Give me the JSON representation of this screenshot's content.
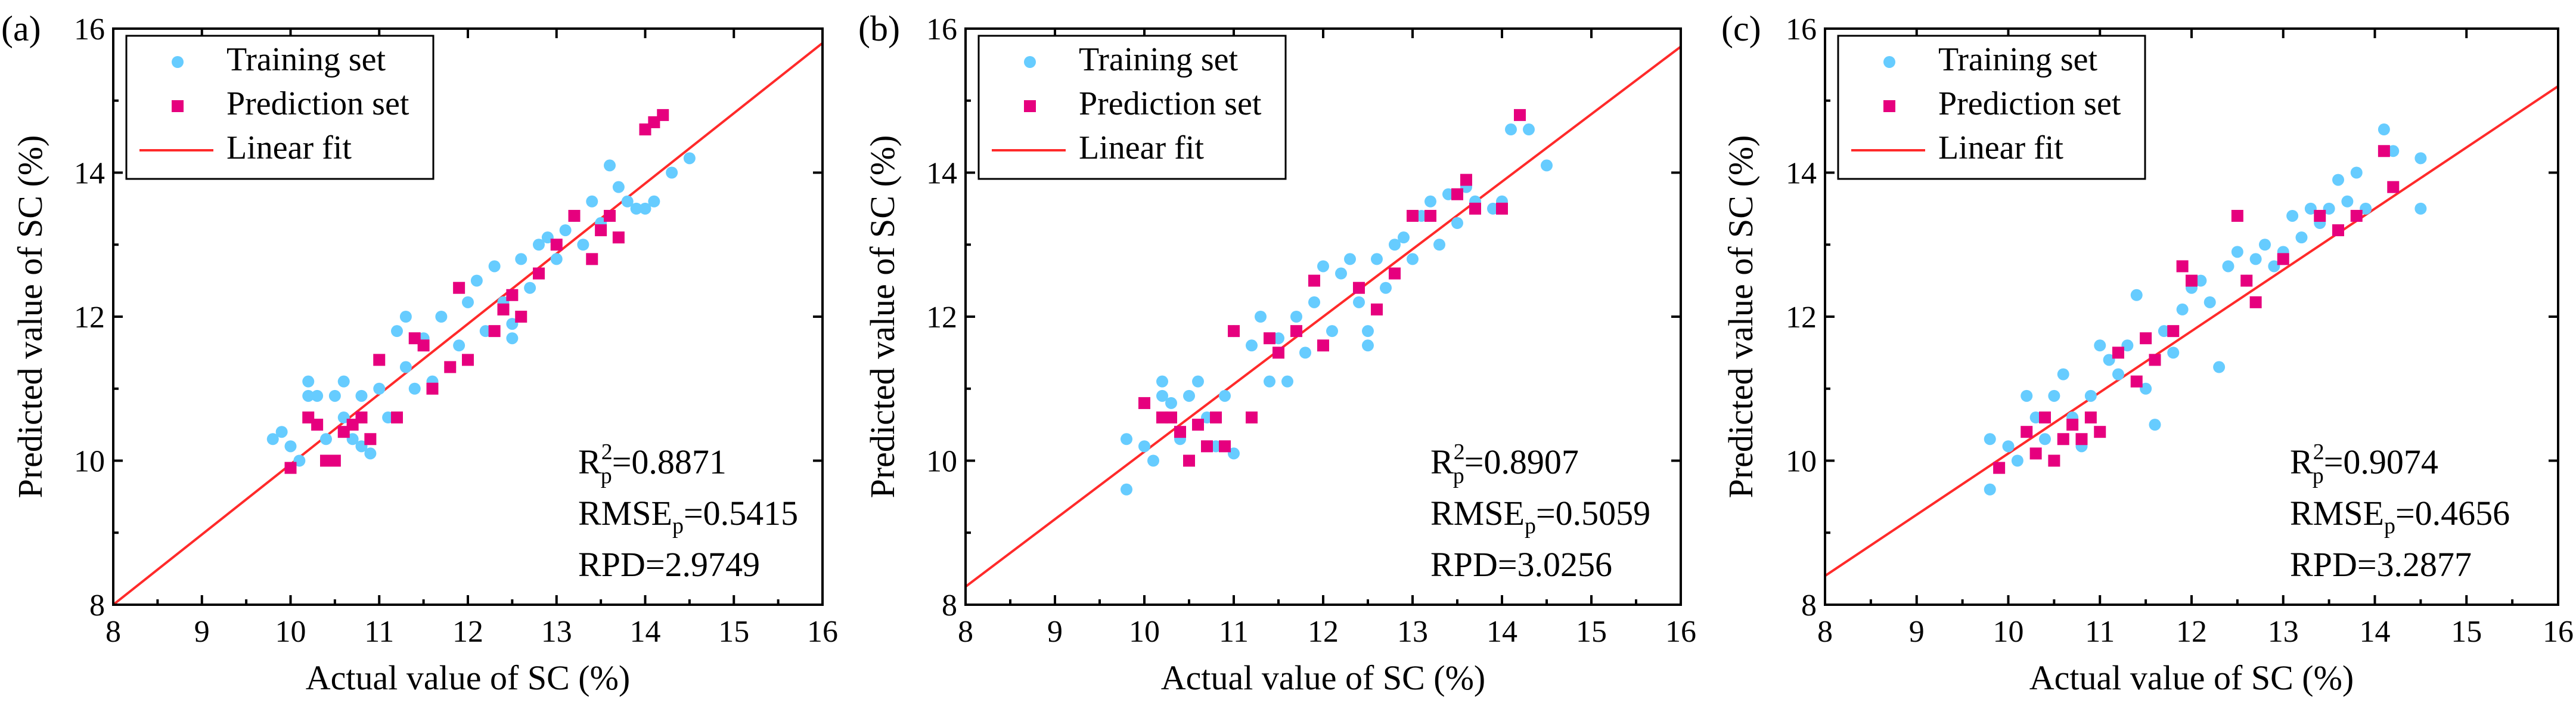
{
  "chart_data": [
    {
      "type": "scatter",
      "panel_label": "(a)",
      "xlabel": "Actual value of SC (%)",
      "ylabel": "Predicted value of  SC (%)",
      "xlim": [
        8,
        16
      ],
      "ylim": [
        8,
        16
      ],
      "xticks": [
        8,
        9,
        10,
        11,
        12,
        13,
        14,
        15,
        16
      ],
      "yticks": [
        8,
        10,
        12,
        14,
        16
      ],
      "legend": {
        "location": "top-left",
        "entries": [
          "Training set",
          "Prediction set",
          "Linear fit"
        ]
      },
      "stats": {
        "r2_label": "R",
        "r2_sup": "2",
        "r2_sub": "p",
        "r2_value": "=0.8871",
        "rmse_label": "RMSE",
        "rmse_sub": "p",
        "rmse_value": "=0.5415",
        "rpd": "RPD=2.9749"
      },
      "fit_line": {
        "x": [
          8,
          16
        ],
        "y": [
          8.0,
          15.8
        ]
      },
      "series": [
        {
          "name": "Training set",
          "marker": "circle",
          "color": "#66ccff",
          "points": [
            [
              9.8,
              10.3
            ],
            [
              9.9,
              10.4
            ],
            [
              10.0,
              10.2
            ],
            [
              10.1,
              10.0
            ],
            [
              10.2,
              10.9
            ],
            [
              10.2,
              11.1
            ],
            [
              10.3,
              10.9
            ],
            [
              10.4,
              10.3
            ],
            [
              10.5,
              10.9
            ],
            [
              10.6,
              11.1
            ],
            [
              10.6,
              10.6
            ],
            [
              10.7,
              10.3
            ],
            [
              10.8,
              10.2
            ],
            [
              10.8,
              10.9
            ],
            [
              10.9,
              10.1
            ],
            [
              11.0,
              11.0
            ],
            [
              11.1,
              10.6
            ],
            [
              11.2,
              11.8
            ],
            [
              11.3,
              11.3
            ],
            [
              11.3,
              12.0
            ],
            [
              11.4,
              11.0
            ],
            [
              11.5,
              11.7
            ],
            [
              11.6,
              11.1
            ],
            [
              11.7,
              12.0
            ],
            [
              11.8,
              11.3
            ],
            [
              11.9,
              11.6
            ],
            [
              12.0,
              12.2
            ],
            [
              12.1,
              12.5
            ],
            [
              12.2,
              11.8
            ],
            [
              12.3,
              12.7
            ],
            [
              12.4,
              12.2
            ],
            [
              12.5,
              11.7
            ],
            [
              12.5,
              11.9
            ],
            [
              12.6,
              12.8
            ],
            [
              12.7,
              12.4
            ],
            [
              12.8,
              13.0
            ],
            [
              12.9,
              13.1
            ],
            [
              13.0,
              12.8
            ],
            [
              13.1,
              13.2
            ],
            [
              13.2,
              13.4
            ],
            [
              13.3,
              13.0
            ],
            [
              13.4,
              13.6
            ],
            [
              13.5,
              13.3
            ],
            [
              13.6,
              14.1
            ],
            [
              13.7,
              13.8
            ],
            [
              13.8,
              13.6
            ],
            [
              13.9,
              13.5
            ],
            [
              14.0,
              13.5
            ],
            [
              14.1,
              13.6
            ],
            [
              14.3,
              14.0
            ],
            [
              14.5,
              14.2
            ]
          ]
        },
        {
          "name": "Prediction set",
          "marker": "square",
          "color": "#e6007e",
          "points": [
            [
              10.0,
              9.9
            ],
            [
              10.2,
              10.6
            ],
            [
              10.3,
              10.5
            ],
            [
              10.4,
              10.0
            ],
            [
              10.5,
              10.0
            ],
            [
              10.6,
              10.4
            ],
            [
              10.7,
              10.5
            ],
            [
              10.8,
              10.6
            ],
            [
              10.9,
              10.3
            ],
            [
              11.0,
              11.4
            ],
            [
              11.2,
              10.6
            ],
            [
              11.4,
              11.7
            ],
            [
              11.5,
              11.6
            ],
            [
              11.6,
              11.0
            ],
            [
              11.8,
              11.3
            ],
            [
              11.9,
              12.4
            ],
            [
              12.0,
              11.4
            ],
            [
              12.3,
              11.8
            ],
            [
              12.4,
              12.1
            ],
            [
              12.5,
              12.3
            ],
            [
              12.6,
              12.0
            ],
            [
              12.8,
              12.6
            ],
            [
              13.0,
              13.0
            ],
            [
              13.2,
              13.4
            ],
            [
              13.4,
              12.8
            ],
            [
              13.5,
              13.2
            ],
            [
              13.6,
              13.4
            ],
            [
              13.7,
              13.1
            ],
            [
              14.0,
              14.6
            ],
            [
              14.1,
              14.7
            ],
            [
              14.2,
              14.8
            ]
          ]
        }
      ]
    },
    {
      "type": "scatter",
      "panel_label": "(b)",
      "xlabel": "Actual value of SC (%)",
      "ylabel": "Predicted value of SC (%)",
      "xlim": [
        8,
        16
      ],
      "ylim": [
        8,
        16
      ],
      "xticks": [
        8,
        9,
        10,
        11,
        12,
        13,
        14,
        15,
        16
      ],
      "yticks": [
        8,
        10,
        12,
        14,
        16
      ],
      "legend": {
        "location": "top-left",
        "entries": [
          "Training set",
          "Prediction set",
          "Linear fit"
        ]
      },
      "stats": {
        "r2_label": "R",
        "r2_sup": "2",
        "r2_sub": "p",
        "r2_value": "=0.8907",
        "rmse_label": "RMSE",
        "rmse_sub": "p",
        "rmse_value": "=0.5059",
        "rpd": "RPD=3.0256"
      },
      "fit_line": {
        "x": [
          8,
          16
        ],
        "y": [
          8.25,
          15.75
        ]
      },
      "series": [
        {
          "name": "Training set",
          "marker": "circle",
          "color": "#66ccff",
          "points": [
            [
              9.8,
              9.6
            ],
            [
              9.8,
              10.3
            ],
            [
              10.0,
              10.2
            ],
            [
              10.1,
              10.0
            ],
            [
              10.2,
              10.9
            ],
            [
              10.2,
              11.1
            ],
            [
              10.3,
              10.8
            ],
            [
              10.4,
              10.3
            ],
            [
              10.5,
              10.9
            ],
            [
              10.6,
              11.1
            ],
            [
              10.7,
              10.6
            ],
            [
              10.8,
              10.2
            ],
            [
              10.9,
              10.9
            ],
            [
              11.0,
              10.1
            ],
            [
              11.0,
              11.8
            ],
            [
              11.2,
              11.6
            ],
            [
              11.3,
              12.0
            ],
            [
              11.4,
              11.1
            ],
            [
              11.5,
              11.7
            ],
            [
              11.6,
              11.1
            ],
            [
              11.7,
              12.0
            ],
            [
              11.8,
              11.5
            ],
            [
              11.9,
              12.2
            ],
            [
              12.0,
              12.7
            ],
            [
              12.1,
              11.8
            ],
            [
              12.2,
              12.6
            ],
            [
              12.3,
              12.8
            ],
            [
              12.4,
              12.2
            ],
            [
              12.5,
              11.6
            ],
            [
              12.5,
              11.8
            ],
            [
              12.6,
              12.8
            ],
            [
              12.7,
              12.4
            ],
            [
              12.8,
              13.0
            ],
            [
              12.9,
              13.1
            ],
            [
              13.0,
              12.8
            ],
            [
              13.1,
              13.4
            ],
            [
              13.2,
              13.6
            ],
            [
              13.3,
              13.0
            ],
            [
              13.4,
              13.7
            ],
            [
              13.5,
              13.3
            ],
            [
              13.6,
              13.8
            ],
            [
              13.7,
              13.6
            ],
            [
              13.9,
              13.5
            ],
            [
              14.0,
              13.6
            ],
            [
              14.1,
              14.6
            ],
            [
              14.3,
              14.6
            ],
            [
              14.5,
              14.1
            ]
          ]
        },
        {
          "name": "Prediction set",
          "marker": "square",
          "color": "#e6007e",
          "points": [
            [
              10.0,
              10.8
            ],
            [
              10.2,
              10.6
            ],
            [
              10.3,
              10.6
            ],
            [
              10.4,
              10.4
            ],
            [
              10.5,
              10.0
            ],
            [
              10.6,
              10.5
            ],
            [
              10.7,
              10.2
            ],
            [
              10.8,
              10.6
            ],
            [
              10.9,
              10.2
            ],
            [
              11.0,
              11.8
            ],
            [
              11.2,
              10.6
            ],
            [
              11.4,
              11.7
            ],
            [
              11.5,
              11.5
            ],
            [
              11.7,
              11.8
            ],
            [
              11.9,
              12.5
            ],
            [
              12.0,
              11.6
            ],
            [
              12.4,
              12.4
            ],
            [
              12.6,
              12.1
            ],
            [
              12.8,
              12.6
            ],
            [
              13.0,
              13.4
            ],
            [
              13.2,
              13.4
            ],
            [
              13.5,
              13.7
            ],
            [
              13.6,
              13.9
            ],
            [
              13.7,
              13.5
            ],
            [
              14.0,
              13.5
            ],
            [
              14.2,
              14.8
            ]
          ]
        }
      ]
    },
    {
      "type": "scatter",
      "panel_label": "(c)",
      "xlabel": "Actual value of SC (%)",
      "ylabel": "Predicted value of SC (%)",
      "xlim": [
        8,
        16
      ],
      "ylim": [
        8,
        16
      ],
      "xticks": [
        8,
        9,
        10,
        11,
        12,
        13,
        14,
        15,
        16
      ],
      "yticks": [
        8,
        10,
        12,
        14,
        16
      ],
      "legend": {
        "location": "top-left",
        "entries": [
          "Training set",
          "Prediction set",
          "Linear fit"
        ]
      },
      "stats": {
        "r2_label": "R",
        "r2_sup": "2",
        "r2_sub": "p",
        "r2_value": "=0.9074",
        "rmse_label": "RMSE",
        "rmse_sub": "p",
        "rmse_value": "=0.4656",
        "rpd": "RPD=3.2877"
      },
      "fit_line": {
        "x": [
          8,
          16
        ],
        "y": [
          8.4,
          15.2
        ]
      },
      "series": [
        {
          "name": "Training set",
          "marker": "circle",
          "color": "#66ccff",
          "points": [
            [
              9.8,
              9.6
            ],
            [
              9.8,
              10.3
            ],
            [
              10.0,
              10.2
            ],
            [
              10.1,
              10.0
            ],
            [
              10.2,
              10.9
            ],
            [
              10.3,
              10.6
            ],
            [
              10.4,
              10.3
            ],
            [
              10.5,
              10.9
            ],
            [
              10.6,
              11.2
            ],
            [
              10.7,
              10.6
            ],
            [
              10.8,
              10.2
            ],
            [
              10.9,
              10.9
            ],
            [
              11.0,
              11.6
            ],
            [
              11.1,
              11.4
            ],
            [
              11.2,
              11.2
            ],
            [
              11.3,
              11.6
            ],
            [
              11.4,
              12.3
            ],
            [
              11.5,
              11.0
            ],
            [
              11.6,
              10.5
            ],
            [
              11.7,
              11.8
            ],
            [
              11.8,
              11.5
            ],
            [
              11.9,
              12.1
            ],
            [
              12.0,
              12.4
            ],
            [
              12.1,
              12.5
            ],
            [
              12.2,
              12.2
            ],
            [
              12.3,
              11.3
            ],
            [
              12.4,
              12.7
            ],
            [
              12.5,
              12.9
            ],
            [
              12.6,
              12.5
            ],
            [
              12.7,
              12.8
            ],
            [
              12.8,
              13.0
            ],
            [
              12.9,
              12.7
            ],
            [
              13.0,
              12.9
            ],
            [
              13.1,
              13.4
            ],
            [
              13.2,
              13.1
            ],
            [
              13.3,
              13.5
            ],
            [
              13.4,
              13.3
            ],
            [
              13.5,
              13.5
            ],
            [
              13.6,
              13.9
            ],
            [
              13.7,
              13.6
            ],
            [
              13.8,
              14.0
            ],
            [
              13.9,
              13.5
            ],
            [
              14.1,
              14.6
            ],
            [
              14.2,
              14.3
            ],
            [
              14.5,
              14.2
            ],
            [
              14.5,
              13.5
            ]
          ]
        },
        {
          "name": "Prediction set",
          "marker": "square",
          "color": "#e6007e",
          "points": [
            [
              9.9,
              9.9
            ],
            [
              10.2,
              10.4
            ],
            [
              10.3,
              10.1
            ],
            [
              10.4,
              10.6
            ],
            [
              10.5,
              10.0
            ],
            [
              10.6,
              10.3
            ],
            [
              10.7,
              10.5
            ],
            [
              10.8,
              10.3
            ],
            [
              10.9,
              10.6
            ],
            [
              11.0,
              10.4
            ],
            [
              11.2,
              11.5
            ],
            [
              11.4,
              11.1
            ],
            [
              11.5,
              11.7
            ],
            [
              11.6,
              11.4
            ],
            [
              11.8,
              11.8
            ],
            [
              11.9,
              12.7
            ],
            [
              12.0,
              12.5
            ],
            [
              12.5,
              13.4
            ],
            [
              12.6,
              12.5
            ],
            [
              12.7,
              12.2
            ],
            [
              13.0,
              12.8
            ],
            [
              13.4,
              13.4
            ],
            [
              13.6,
              13.2
            ],
            [
              13.8,
              13.4
            ],
            [
              14.1,
              14.3
            ],
            [
              14.2,
              13.8
            ]
          ]
        }
      ]
    }
  ]
}
